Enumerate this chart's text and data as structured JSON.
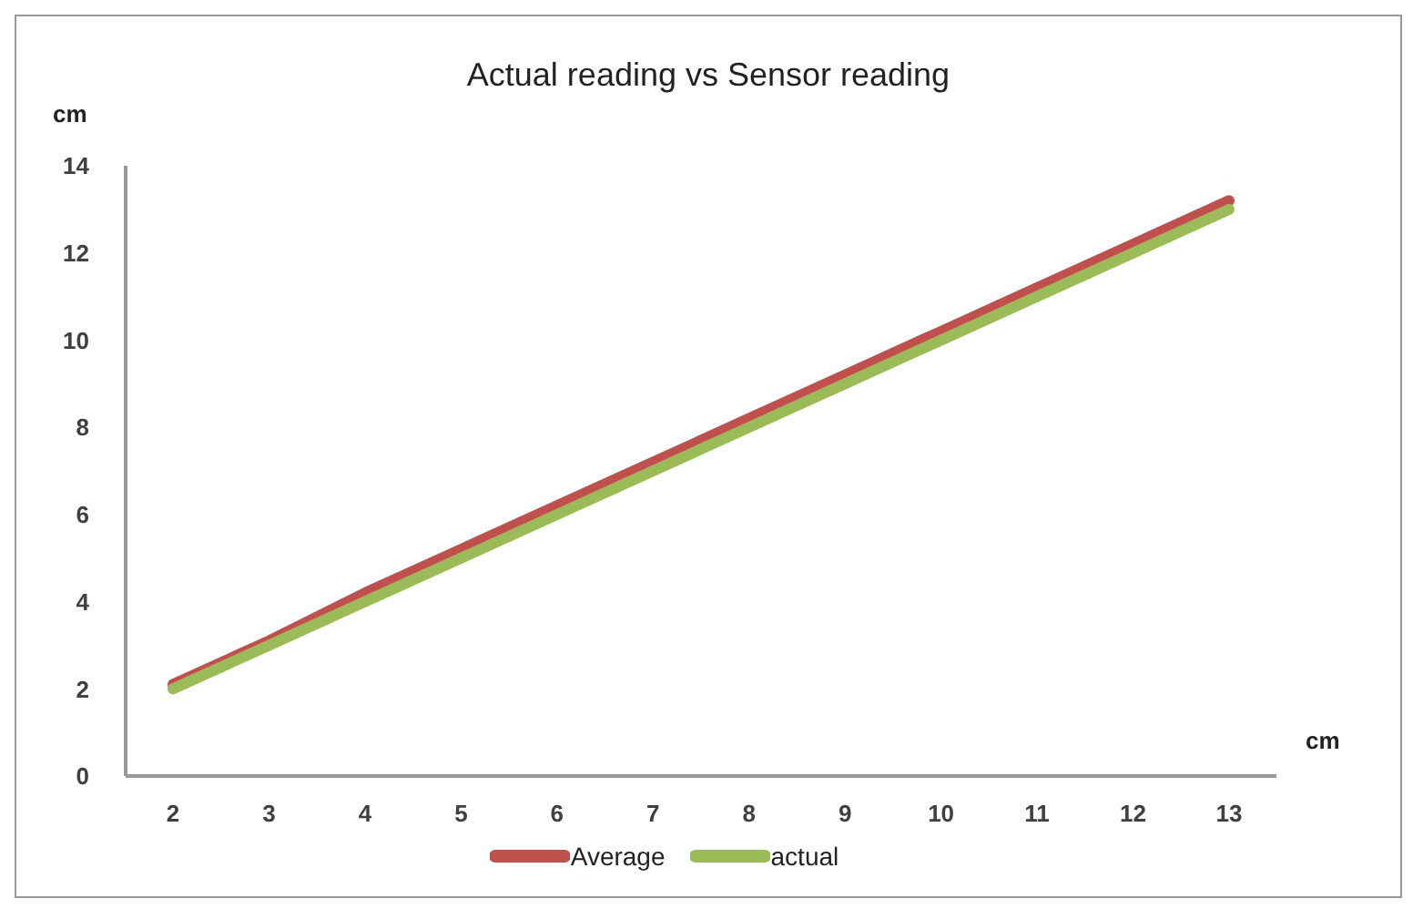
{
  "chart_data": {
    "type": "line",
    "title": "Actual reading vs Sensor reading",
    "xlabel": "cm",
    "ylabel": "cm",
    "categories": [
      "2",
      "3",
      "4",
      "5",
      "6",
      "7",
      "8",
      "9",
      "10",
      "11",
      "12",
      "13"
    ],
    "series": [
      {
        "name": "Average",
        "color": "#c0504d",
        "values": [
          2.1,
          3.1,
          4.2,
          5.2,
          6.2,
          7.2,
          8.2,
          9.2,
          10.2,
          11.2,
          12.2,
          13.2
        ]
      },
      {
        "name": "actual",
        "color": "#9bbb59",
        "values": [
          2,
          3,
          4,
          5,
          6,
          7,
          8,
          9,
          10,
          11,
          12,
          13
        ]
      }
    ],
    "ylim": [
      0,
      14
    ],
    "yticks": [
      0,
      2,
      4,
      6,
      8,
      10,
      12,
      14
    ],
    "grid": false,
    "legend": "bottom",
    "marker": "none",
    "line_style": "solid"
  }
}
